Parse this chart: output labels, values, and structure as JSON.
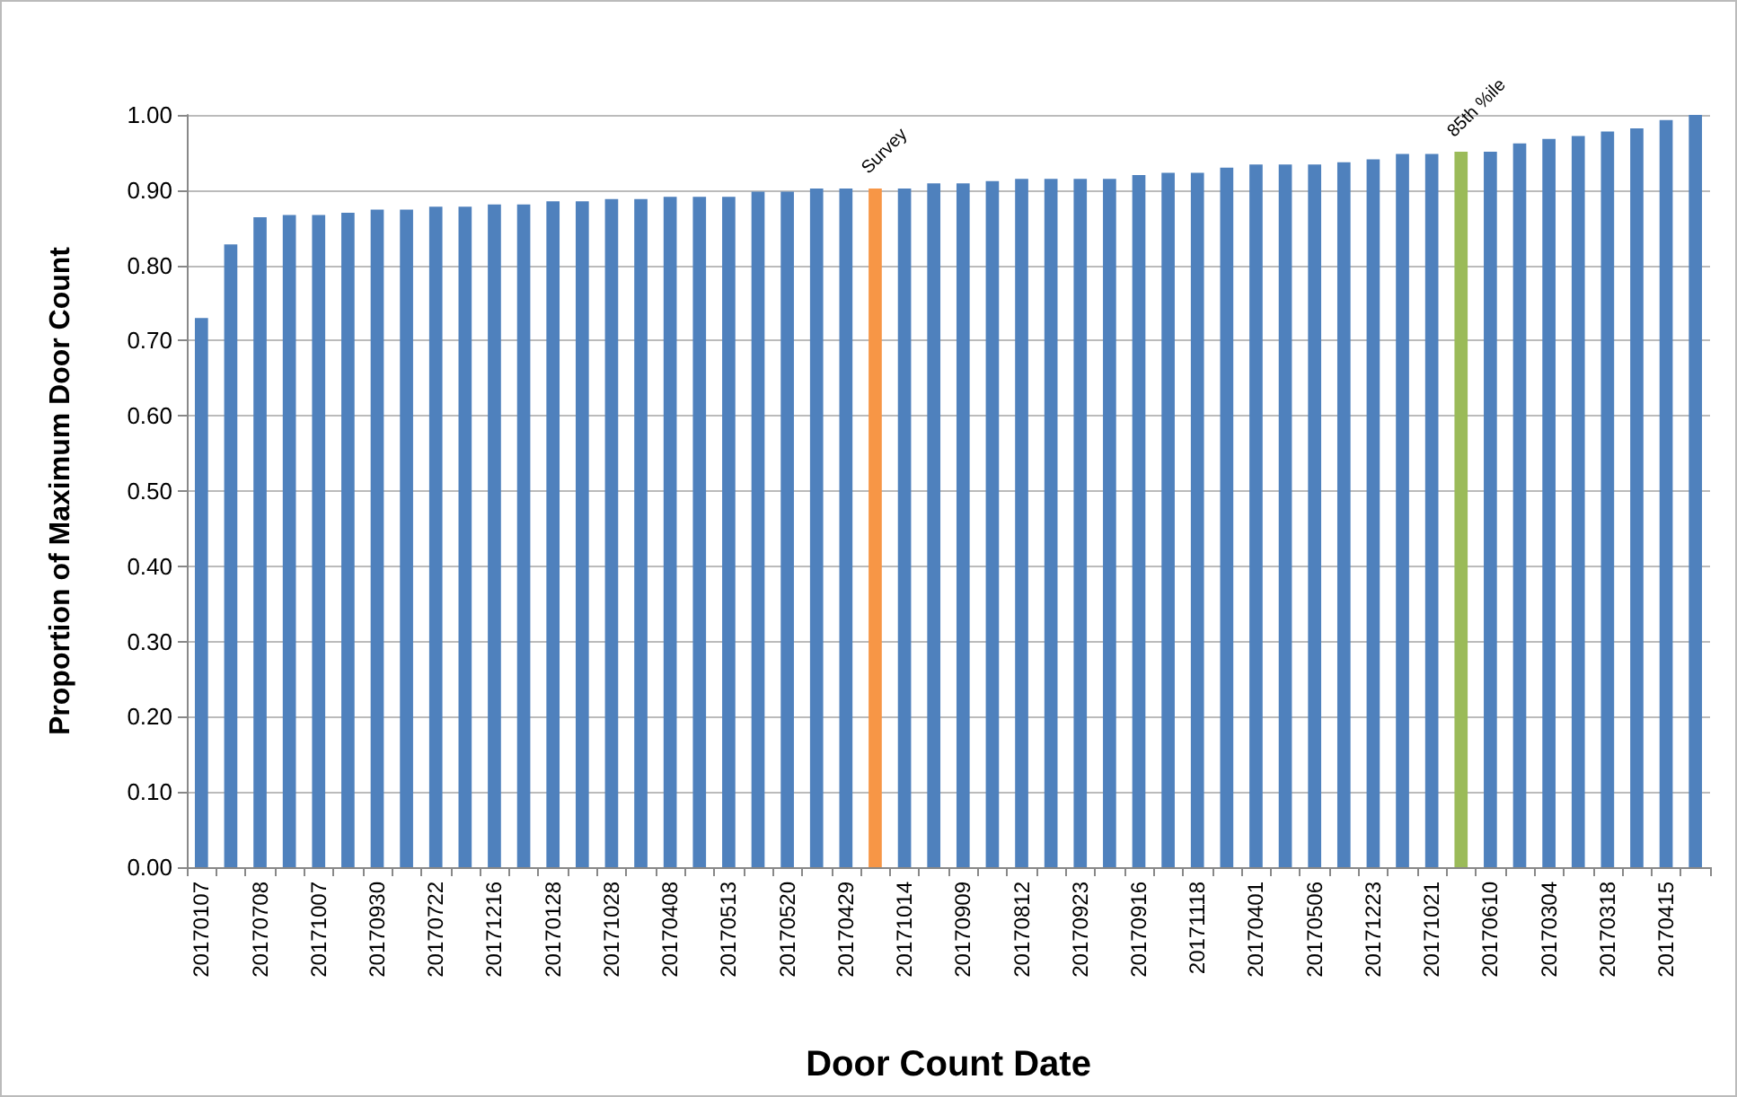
{
  "chart_data": {
    "type": "bar",
    "xlabel": "Door Count Date",
    "ylabel": "Proportion of Maximum Door Count",
    "categories": [
      "20170107",
      null,
      "20170708",
      null,
      "20171007",
      null,
      "20170930",
      null,
      "20170722",
      null,
      "20171216",
      null,
      "20170128",
      null,
      "20171028",
      null,
      "20170408",
      null,
      "20170513",
      null,
      "20170520",
      null,
      "20170429",
      null,
      "20171014",
      null,
      "20170909",
      null,
      "20170812",
      null,
      "20170923",
      null,
      "20170916",
      null,
      "20171118",
      null,
      "20170401",
      null,
      "20170506",
      null,
      "20171223",
      null,
      "20171021",
      null,
      "20170610",
      null,
      "20170304",
      null,
      "20170318",
      null,
      "20170415",
      null
    ],
    "values": [
      0.73,
      0.828,
      0.864,
      0.867,
      0.867,
      0.87,
      0.874,
      0.874,
      0.878,
      0.878,
      0.881,
      0.881,
      0.885,
      0.885,
      0.888,
      0.888,
      0.891,
      0.891,
      0.891,
      0.898,
      0.898,
      0.902,
      0.902,
      0.902,
      0.902,
      0.909,
      0.909,
      0.912,
      0.915,
      0.915,
      0.915,
      0.915,
      0.92,
      0.923,
      0.923,
      0.93,
      0.934,
      0.934,
      0.934,
      0.937,
      0.941,
      0.948,
      0.948,
      0.951,
      0.951,
      0.962,
      0.968,
      0.972,
      0.978,
      0.982,
      0.993,
      1.0
    ],
    "colors": [
      "#4f81bd",
      "#4f81bd",
      "#4f81bd",
      "#4f81bd",
      "#4f81bd",
      "#4f81bd",
      "#4f81bd",
      "#4f81bd",
      "#4f81bd",
      "#4f81bd",
      "#4f81bd",
      "#4f81bd",
      "#4f81bd",
      "#4f81bd",
      "#4f81bd",
      "#4f81bd",
      "#4f81bd",
      "#4f81bd",
      "#4f81bd",
      "#4f81bd",
      "#4f81bd",
      "#4f81bd",
      "#4f81bd",
      "#f79646",
      "#4f81bd",
      "#4f81bd",
      "#4f81bd",
      "#4f81bd",
      "#4f81bd",
      "#4f81bd",
      "#4f81bd",
      "#4f81bd",
      "#4f81bd",
      "#4f81bd",
      "#4f81bd",
      "#4f81bd",
      "#4f81bd",
      "#4f81bd",
      "#4f81bd",
      "#4f81bd",
      "#4f81bd",
      "#4f81bd",
      "#4f81bd",
      "#9bbb59",
      "#4f81bd",
      "#4f81bd",
      "#4f81bd",
      "#4f81bd",
      "#4f81bd",
      "#4f81bd",
      "#4f81bd",
      "#4f81bd"
    ],
    "annotations": [
      "Survey",
      "85th %ile"
    ],
    "ylim": [
      0,
      1
    ],
    "yticks": [
      {
        "value": 0,
        "label": "0.00"
      },
      {
        "value": 0.1,
        "label": "0.10"
      },
      {
        "value": 0.2,
        "label": "0.20"
      },
      {
        "value": 0.3,
        "label": "0.30"
      },
      {
        "value": 0.4,
        "label": "0.40"
      },
      {
        "value": 0.5,
        "label": "0.50"
      },
      {
        "value": 0.6,
        "label": "0.60"
      },
      {
        "value": 0.7,
        "label": "0.70"
      },
      {
        "value": 0.8,
        "label": "0.80"
      },
      {
        "value": 0.9,
        "label": "0.90"
      },
      {
        "value": 1,
        "label": "1.00"
      }
    ],
    "grid": "y"
  }
}
